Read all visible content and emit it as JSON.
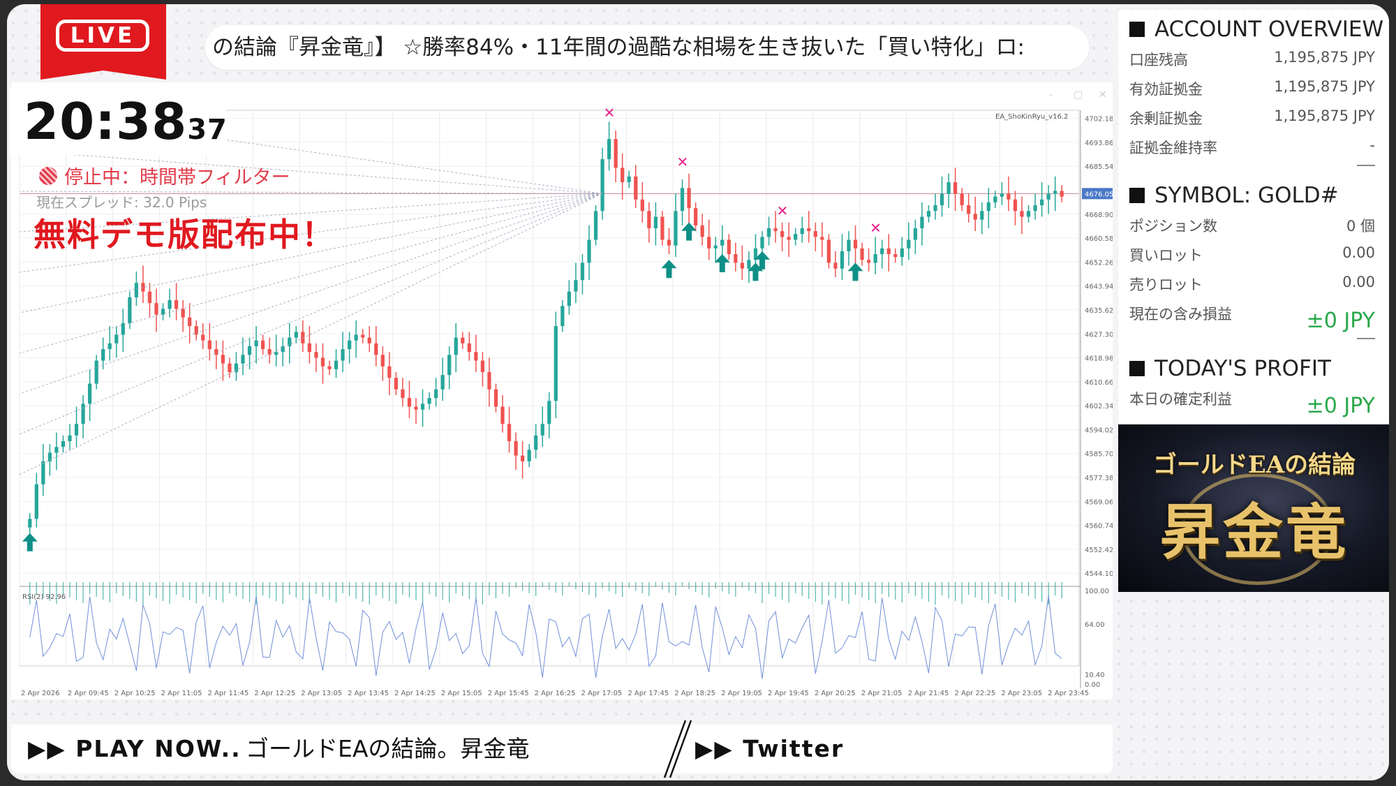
{
  "live_badge": {
    "label": "LIVE"
  },
  "ticker": {
    "text": "の結論『昇金竜』】 ☆勝率84%・11年間の過酷な相場を生き抜いた「買い特化」ロ:"
  },
  "clock": {
    "time": "20:38",
    "seconds": "37"
  },
  "status": {
    "text": "停止中：時間帯フィルター",
    "spread": "現在スプレッド: 32.0 Pips",
    "demo_banner": "無料デモ版配布中！"
  },
  "account_overview": {
    "title": "ACCOUNT OVERVIEW",
    "rows": [
      {
        "label": "口座残高",
        "value": "1,195,875 JPY"
      },
      {
        "label": "有効証拠金",
        "value": "1,195,875 JPY"
      },
      {
        "label": "余剰証拠金",
        "value": "1,195,875 JPY"
      },
      {
        "label": "証拠金維持率",
        "value": "-"
      }
    ]
  },
  "symbol_panel": {
    "title": "SYMBOL: GOLD#",
    "rows": [
      {
        "label": "ポジション数",
        "value": "0 個"
      },
      {
        "label": "買いロット",
        "value": "0.00"
      },
      {
        "label": "売りロット",
        "value": "0.00"
      },
      {
        "label": "現在の含み損益",
        "value": "±0 JPY"
      }
    ]
  },
  "today_profit": {
    "title": "TODAY'S PROFIT",
    "rows": [
      {
        "label": "本日の確定利益",
        "value": "±0 JPY"
      }
    ]
  },
  "brand": {
    "subtitle": "ゴールドEAの結論",
    "name": "昇金竜"
  },
  "bottom_bar": {
    "play_now": "▶▶ PLAY NOW..",
    "title": "ゴールドEAの結論。昇金竜",
    "twitter": "▶▶ Twitter"
  },
  "colors": {
    "bull": "#26a69a",
    "bear": "#ef5350",
    "accent": "#e0191f",
    "profit_green": "#2aa84a",
    "sell_mark": "#e91e8c"
  },
  "chart_data": [
    {
      "type": "candlestick",
      "indicator_label": "EA_ShoKinRyu_v16.2",
      "y_ticks": [
        "4702.18",
        "4693.86",
        "4685.54",
        "4676.05",
        "4668.90",
        "4660.58",
        "4652.26",
        "4643.94",
        "4635.62",
        "4627.30",
        "4618.98",
        "4610.66",
        "4602.34",
        "4594.02",
        "4585.70",
        "4577.38",
        "4569.06",
        "4560.74",
        "4552.42",
        "4544.10"
      ],
      "current_price": "4676.05",
      "x_ticks": [
        "2 Apr 2026",
        "2 Apr 09:45",
        "2 Apr 10:25",
        "2 Apr 11:05",
        "2 Apr 11:45",
        "2 Apr 12:25",
        "2 Apr 13:05",
        "2 Apr 13:45",
        "2 Apr 14:25",
        "2 Apr 15:05",
        "2 Apr 15:45",
        "2 Apr 16:25",
        "2 Apr 17:05",
        "2 Apr 17:45",
        "2 Apr 18:25",
        "2 Apr 19:05",
        "2 Apr 19:45",
        "2 Apr 20:25",
        "2 Apr 21:05",
        "2 Apr 21:45",
        "2 Apr 22:25",
        "2 Apr 23:05",
        "2 Apr 23:45"
      ],
      "ylim": [
        4541,
        4705
      ],
      "closes": [
        4563,
        4575,
        4583,
        4586,
        4588,
        4590,
        4592,
        4596,
        4603,
        4610,
        4618,
        4622,
        4624,
        4627,
        4631,
        4640,
        4645,
        4642,
        4638,
        4634,
        4636,
        4639,
        4636,
        4633,
        4630,
        4627,
        4625,
        4622,
        4620,
        4617,
        4614,
        4617,
        4620,
        4623,
        4625,
        4622,
        4620,
        4621,
        4623,
        4626,
        4628,
        4624,
        4621,
        4619,
        4616,
        4615,
        4618,
        4622,
        4625,
        4627,
        4626,
        4624,
        4620,
        4616,
        4612,
        4608,
        4605,
        4602,
        4601,
        4603,
        4605,
        4608,
        4613,
        4620,
        4626,
        4624,
        4621,
        4618,
        4614,
        4608,
        4602,
        4596,
        4590,
        4585,
        4583,
        4587,
        4592,
        4596,
        4604,
        4630,
        4637,
        4642,
        4646,
        4652,
        4660,
        4670,
        4688,
        4695,
        4685,
        4680,
        4682,
        4674,
        4670,
        4664,
        4668,
        4660,
        4658,
        4670,
        4678,
        4671,
        4665,
        4661,
        4657,
        4658,
        4660,
        4655,
        4652,
        4650,
        4653,
        4657,
        4661,
        4664,
        4663,
        4661,
        4660,
        4662,
        4664,
        4663,
        4661,
        4660,
        4652,
        4650,
        4656,
        4660,
        4657,
        4653,
        4652,
        4655,
        4657,
        4655,
        4654,
        4657,
        4660,
        4664,
        4668,
        4670,
        4672,
        4676,
        4680,
        4676,
        4672,
        4669,
        4667,
        4670,
        4673,
        4675,
        4676,
        4674,
        4670,
        4668,
        4670,
        4672,
        4674,
        4676,
        4677,
        4675
      ],
      "buy_signal_indices": [
        0,
        96,
        99,
        104,
        109,
        110,
        124
      ],
      "sell_signal_indices": [
        87,
        98,
        113,
        127
      ]
    },
    {
      "type": "line",
      "label": "RSI(2) 92.96",
      "y_ticks": [
        "100.00",
        "64.00",
        "10.40",
        "0.00"
      ],
      "ylim": [
        0,
        100
      ]
    }
  ]
}
